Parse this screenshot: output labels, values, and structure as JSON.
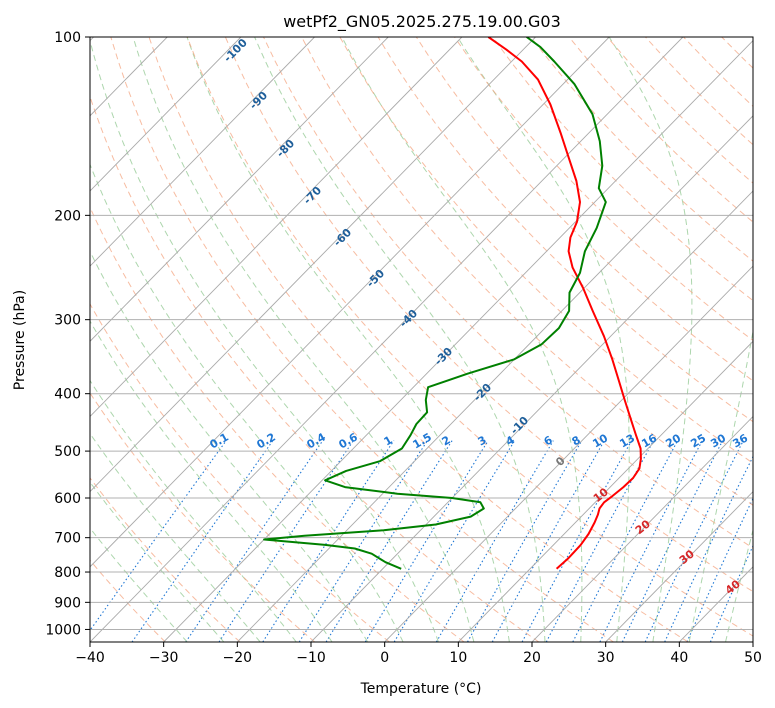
{
  "chart_data": {
    "type": "line",
    "title": "wetPf2_GN05.2025.275.19.00.G03",
    "xlabel": "Temperature (°C)",
    "ylabel": "Pressure (hPa)",
    "xlim": [
      -40,
      50
    ],
    "ylim": [
      1050,
      100
    ],
    "y_scale": "log",
    "skew": true,
    "grid": true,
    "x_ticks": [
      "−40",
      "−30",
      "−20",
      "−10",
      "0",
      "10",
      "20",
      "30",
      "40",
      "50"
    ],
    "y_ticks": [
      "100",
      "200",
      "300",
      "400",
      "500",
      "600",
      "700",
      "800",
      "900",
      "1000"
    ],
    "colors": {
      "temperature": "#ff0000",
      "dewpoint": "#008000",
      "dry_adiabat": "#f4a582",
      "moist_adiabat": "#99cc99",
      "mixing_ratio": "#1f77d4",
      "isotherm": "#aaaaaa",
      "wetbulb_label": "#1f5f9a",
      "dry_label": "#d62728"
    },
    "series": [
      {
        "name": "",
        "color": "#ff0000",
        "points": [
          {
            "p": 790,
            "t": 13.6
          },
          {
            "p": 760,
            "t": 13.8
          },
          {
            "p": 720,
            "t": 13.7
          },
          {
            "p": 690,
            "t": 13.3
          },
          {
            "p": 660,
            "t": 12.6
          },
          {
            "p": 640,
            "t": 12.0
          },
          {
            "p": 625,
            "t": 11.4
          },
          {
            "p": 610,
            "t": 11.2
          },
          {
            "p": 595,
            "t": 11.5
          },
          {
            "p": 575,
            "t": 11.8
          },
          {
            "p": 555,
            "t": 11.9
          },
          {
            "p": 535,
            "t": 11.5
          },
          {
            "p": 515,
            "t": 10.4
          },
          {
            "p": 495,
            "t": 9.0
          },
          {
            "p": 470,
            "t": 6.6
          },
          {
            "p": 440,
            "t": 3.6
          },
          {
            "p": 410,
            "t": 0.4
          },
          {
            "p": 380,
            "t": -3.0
          },
          {
            "p": 350,
            "t": -6.7
          },
          {
            "p": 320,
            "t": -10.9
          },
          {
            "p": 290,
            "t": -15.8
          },
          {
            "p": 265,
            "t": -20.2
          },
          {
            "p": 245,
            "t": -24.3
          },
          {
            "p": 230,
            "t": -27.0
          },
          {
            "p": 218,
            "t": -28.6
          },
          {
            "p": 205,
            "t": -29.8
          },
          {
            "p": 190,
            "t": -32.0
          },
          {
            "p": 175,
            "t": -35.3
          },
          {
            "p": 160,
            "t": -39.4
          },
          {
            "p": 145,
            "t": -43.9
          },
          {
            "p": 130,
            "t": -49.0
          },
          {
            "p": 118,
            "t": -54.0
          },
          {
            "p": 110,
            "t": -58.6
          },
          {
            "p": 105,
            "t": -62.3
          },
          {
            "p": 100,
            "t": -66.4
          }
        ]
      },
      {
        "name": "",
        "color": "#008000",
        "points": [
          {
            "p": 790,
            "t": -7.5
          },
          {
            "p": 770,
            "t": -10.5
          },
          {
            "p": 745,
            "t": -13.5
          },
          {
            "p": 730,
            "t": -16.5
          },
          {
            "p": 720,
            "t": -21.0
          },
          {
            "p": 705,
            "t": -30.0
          },
          {
            "p": 695,
            "t": -25.0
          },
          {
            "p": 680,
            "t": -15.0
          },
          {
            "p": 665,
            "t": -8.7
          },
          {
            "p": 645,
            "t": -5.0
          },
          {
            "p": 625,
            "t": -4.3
          },
          {
            "p": 610,
            "t": -5.6
          },
          {
            "p": 600,
            "t": -10.0
          },
          {
            "p": 590,
            "t": -18.0
          },
          {
            "p": 575,
            "t": -26.0
          },
          {
            "p": 560,
            "t": -29.6
          },
          {
            "p": 540,
            "t": -28.0
          },
          {
            "p": 520,
            "t": -24.7
          },
          {
            "p": 495,
            "t": -23.4
          },
          {
            "p": 470,
            "t": -24.0
          },
          {
            "p": 450,
            "t": -24.7
          },
          {
            "p": 430,
            "t": -24.8
          },
          {
            "p": 410,
            "t": -26.6
          },
          {
            "p": 390,
            "t": -28.0
          },
          {
            "p": 370,
            "t": -24.4
          },
          {
            "p": 350,
            "t": -20.0
          },
          {
            "p": 330,
            "t": -18.3
          },
          {
            "p": 310,
            "t": -18.1
          },
          {
            "p": 290,
            "t": -19.0
          },
          {
            "p": 270,
            "t": -21.4
          },
          {
            "p": 250,
            "t": -22.6
          },
          {
            "p": 230,
            "t": -24.8
          },
          {
            "p": 210,
            "t": -26.3
          },
          {
            "p": 190,
            "t": -28.5
          },
          {
            "p": 180,
            "t": -31.3
          },
          {
            "p": 165,
            "t": -33.8
          },
          {
            "p": 150,
            "t": -37.4
          },
          {
            "p": 135,
            "t": -42.0
          },
          {
            "p": 120,
            "t": -48.5
          },
          {
            "p": 110,
            "t": -54.2
          },
          {
            "p": 104,
            "t": -58.0
          },
          {
            "p": 100,
            "t": -61.2
          }
        ]
      }
    ],
    "mixing_ratio_labels": [
      {
        "text": "0.1",
        "w": 0.1
      },
      {
        "text": "0.2",
        "w": 0.2
      },
      {
        "text": "0.4",
        "w": 0.4
      },
      {
        "text": "0.6",
        "w": 0.6
      },
      {
        "text": "1",
        "w": 1
      },
      {
        "text": "1.5",
        "w": 1.5
      },
      {
        "text": "2",
        "w": 2
      },
      {
        "text": "3",
        "w": 3
      },
      {
        "text": "4",
        "w": 4
      },
      {
        "text": "6",
        "w": 6
      },
      {
        "text": "8",
        "w": 8
      },
      {
        "text": "10",
        "w": 10
      },
      {
        "text": "13",
        "w": 13
      },
      {
        "text": "16",
        "w": 16
      },
      {
        "text": "20",
        "w": 20
      },
      {
        "text": "25",
        "w": 25
      },
      {
        "text": "30",
        "w": 30
      },
      {
        "text": "36",
        "w": 36
      }
    ],
    "wetbulb_labels": [
      {
        "text": "-100",
        "t": -100
      },
      {
        "text": "-90",
        "t": -90
      },
      {
        "text": "-80",
        "t": -80
      },
      {
        "text": "-70",
        "t": -70
      },
      {
        "text": "-60",
        "t": -60
      },
      {
        "text": "-50",
        "t": -50
      },
      {
        "text": "-40",
        "t": -40
      },
      {
        "text": "-30",
        "t": -30
      },
      {
        "text": "-20",
        "t": -20
      },
      {
        "text": "-10",
        "t": -10
      },
      {
        "text": "0",
        "t": 0
      }
    ],
    "dry_adiabat_labels": [
      {
        "text": "10",
        "t": 10
      },
      {
        "text": "20",
        "t": 20
      },
      {
        "text": "30",
        "t": 30
      },
      {
        "text": "40",
        "t": 40
      }
    ]
  }
}
